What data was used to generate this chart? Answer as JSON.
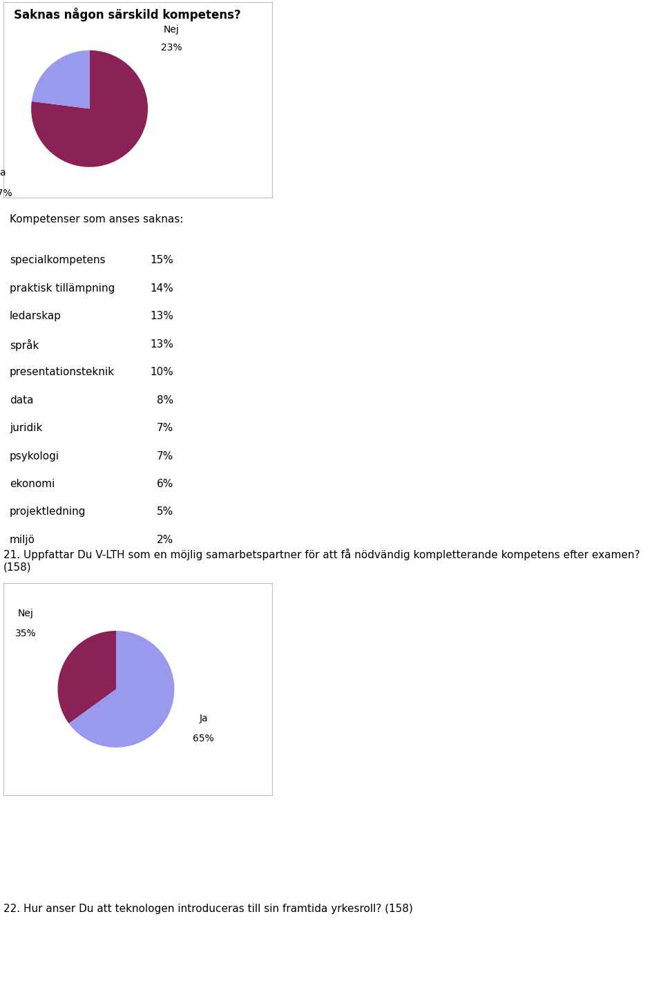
{
  "title1": "Saknas någon särskild kompetens?",
  "pie1_sizes": [
    77,
    23
  ],
  "pie1_colors": [
    "#8B2257",
    "#9999EE"
  ],
  "kompetenser_title": "Kompetenser som anses saknas:",
  "kompetenser_items": [
    [
      "specialkompetens",
      "15%"
    ],
    [
      "praktisk tillämpning",
      "14%"
    ],
    [
      "ledarskap",
      "13%"
    ],
    [
      "språk",
      "13%"
    ],
    [
      "presentationsteknik",
      "10%"
    ],
    [
      "data",
      "8%"
    ],
    [
      "juridik",
      "7%"
    ],
    [
      "psykologi",
      "7%"
    ],
    [
      "ekonomi",
      "6%"
    ],
    [
      "projektledning",
      "5%"
    ],
    [
      "miljö",
      "2%"
    ]
  ],
  "question21": "21. Uppfattar Du V-LTH som en möjlig samarbetspartner för att få nödvändig kompletterande kompetens efter examen? (158)",
  "pie2_sizes": [
    65,
    35
  ],
  "pie2_colors": [
    "#9999EE",
    "#8B2257"
  ],
  "question22": "22. Hur anser Du att teknologen introduceras till sin framtida yrkesroll? (158)",
  "bg_color": "#FFFFFF",
  "text_color": "#000000",
  "font_size_title": 12,
  "font_size_body": 11,
  "box_edge_color": "#BBBBBB"
}
